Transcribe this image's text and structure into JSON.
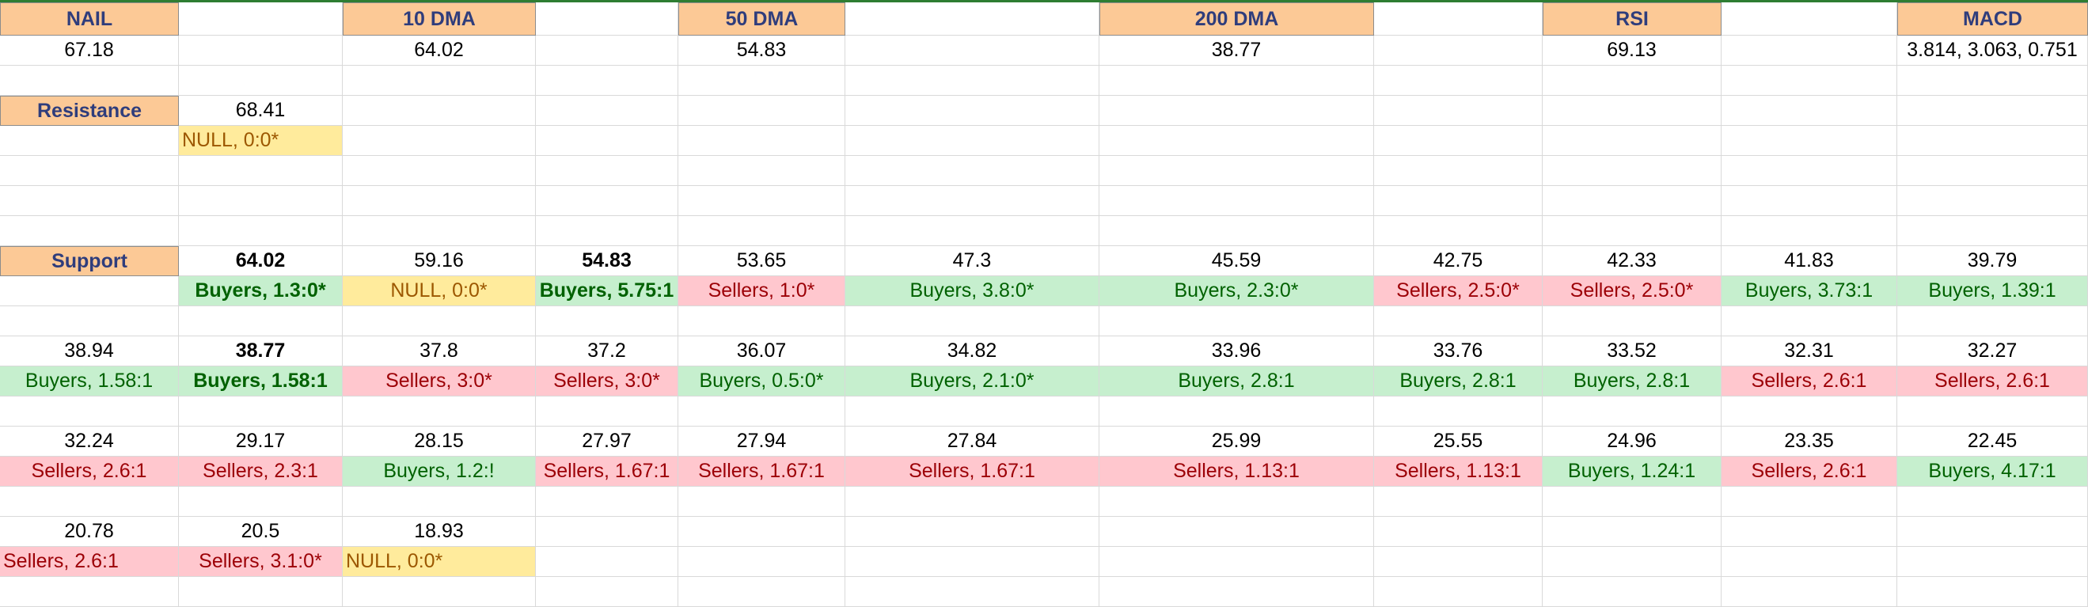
{
  "header": {
    "nail": "NAIL",
    "dma10": "10 DMA",
    "dma50": "50 DMA",
    "dma200": "200 DMA",
    "rsi": "RSI",
    "macd": "MACD"
  },
  "values": {
    "nail": "67.18",
    "dma10": "64.02",
    "dma50": "54.83",
    "dma200": "38.77",
    "rsi": "69.13",
    "macd": "3.814, 3.063, 0.751"
  },
  "resistance": {
    "label": "Resistance",
    "level": "68.41",
    "signal": "NULL, 0:0*"
  },
  "support": {
    "label": "Support",
    "row1": {
      "levels": [
        "64.02",
        "59.16",
        "54.83",
        "53.65",
        "47.3",
        "45.59",
        "42.75",
        "42.33",
        "41.83",
        "39.79"
      ],
      "signals": [
        "Buyers, 1.3:0*",
        "NULL, 0:0*",
        "Buyers, 5.75:1",
        "Sellers, 1:0*",
        "Buyers, 3.8:0*",
        "Buyers, 2.3:0*",
        "Sellers, 2.5:0*",
        "Sellers, 2.5:0*",
        "Buyers, 3.73:1",
        "Buyers, 1.39:1"
      ]
    },
    "row2": {
      "levels": [
        "38.94",
        "38.77",
        "37.8",
        "37.2",
        "36.07",
        "34.82",
        "33.96",
        "33.76",
        "33.52",
        "32.31",
        "32.27"
      ],
      "signals": [
        "Buyers, 1.58:1",
        "Buyers, 1.58:1",
        "Sellers, 3:0*",
        "Sellers, 3:0*",
        "Buyers, 0.5:0*",
        "Buyers, 2.1:0*",
        "Buyers, 2.8:1",
        "Buyers, 2.8:1",
        "Buyers, 2.8:1",
        "Sellers, 2.6:1",
        "Sellers, 2.6:1"
      ]
    },
    "row3": {
      "levels": [
        "32.24",
        "29.17",
        "28.15",
        "27.97",
        "27.94",
        "27.84",
        "25.99",
        "25.55",
        "24.96",
        "23.35",
        "22.45"
      ],
      "signals": [
        "Sellers, 2.6:1",
        "Sellers, 2.3:1",
        "Buyers, 1.2:!",
        "Sellers, 1.67:1",
        "Sellers, 1.67:1",
        "Sellers, 1.67:1",
        "Sellers, 1.13:1",
        "Sellers, 1.13:1",
        "Buyers, 1.24:1",
        "Sellers, 2.6:1",
        "Buyers, 4.17:1"
      ]
    },
    "row4": {
      "levels": [
        "20.78",
        "20.5",
        "18.93"
      ],
      "signals": [
        "Sellers, 2.6:1",
        "Sellers, 3.1:0*",
        "NULL, 0:0*"
      ]
    }
  },
  "colors": {
    "header_fill": "#fcc996",
    "header_text": "#2f3d7c",
    "buyers_fill": "#c6efce",
    "buyers_text": "#006100",
    "sellers_fill": "#ffc7ce",
    "sellers_text": "#9c0006",
    "null_fill": "#ffeb9c",
    "null_text": "#9c5700"
  }
}
